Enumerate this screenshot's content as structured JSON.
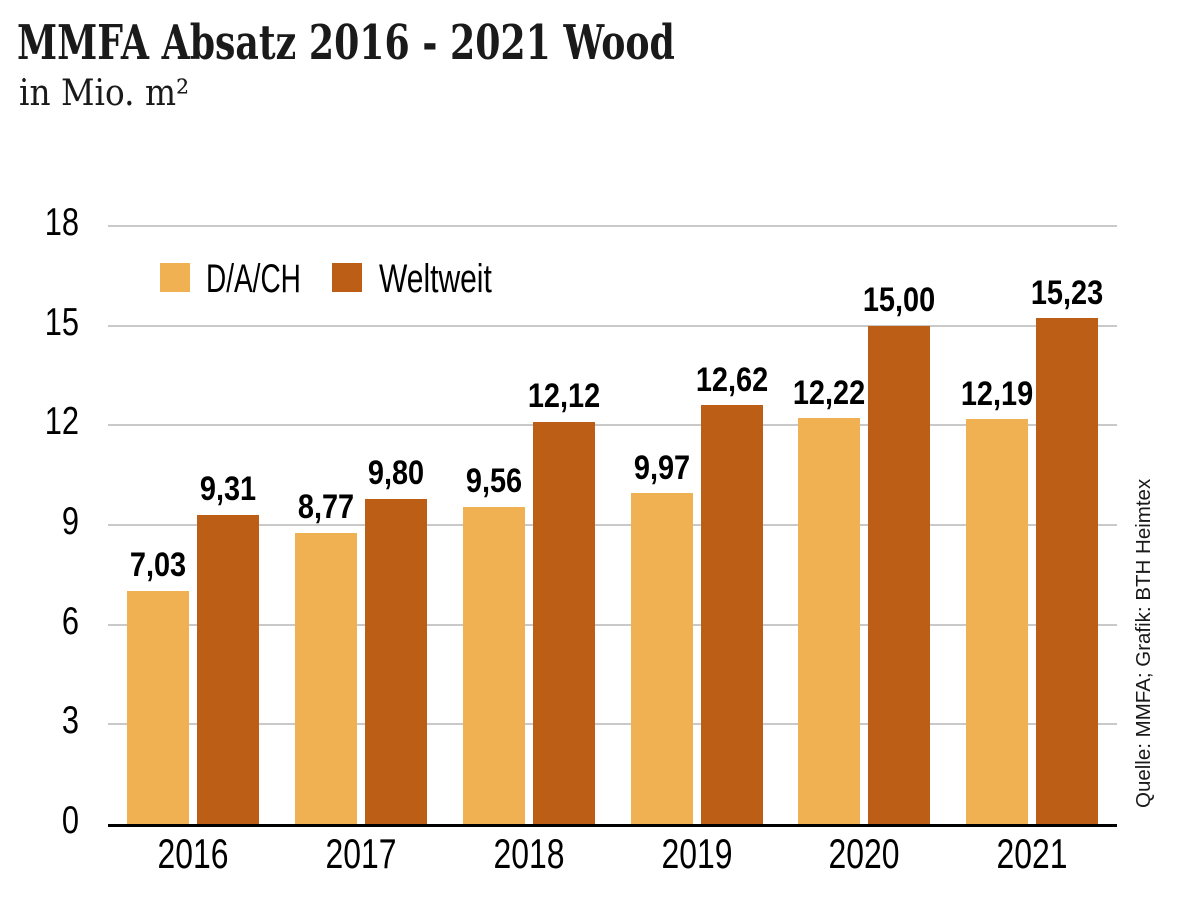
{
  "title": "MMFA Absatz 2016 - 2021 Wood",
  "subtitle": "in Mio. m²",
  "source_note": "Quelle: MMFA; Grafik: BTH Heimtex",
  "colors": {
    "dach": "#EFB152",
    "weltweit": "#BD5E17",
    "gridline": "#C9C9C9",
    "axis": "#000000",
    "text": "#000000"
  },
  "legend": {
    "items": [
      {
        "label": "D/A/CH",
        "color": "#EFB152"
      },
      {
        "label": "Weltweit",
        "color": "#BD5E17"
      }
    ]
  },
  "chart_data": {
    "type": "bar",
    "title": "MMFA Absatz 2016 - 2021 Wood",
    "subtitle": "in Mio. m²",
    "unit": "Mio. m²",
    "categories": [
      "2016",
      "2017",
      "2018",
      "2019",
      "2020",
      "2021"
    ],
    "series": [
      {
        "name": "D/A/CH",
        "color": "#EFB152",
        "values": [
          7.03,
          8.77,
          9.56,
          9.97,
          12.22,
          12.19
        ],
        "value_labels": [
          "7,03",
          "8,77",
          "9,56",
          "9,97",
          "12,22",
          "12,19"
        ]
      },
      {
        "name": "Weltweit",
        "color": "#BD5E17",
        "values": [
          9.31,
          9.8,
          12.12,
          12.62,
          15.0,
          15.23
        ],
        "value_labels": [
          "9,31",
          "9,80",
          "12,12",
          "12,62",
          "15,00",
          "15,23"
        ]
      }
    ],
    "xlabel": "",
    "ylabel": "",
    "ylim": [
      0,
      18
    ],
    "y_ticks": [
      0,
      3,
      6,
      9,
      12,
      15,
      18
    ],
    "grid": true,
    "legend_position": "top-left-inside",
    "source": "Quelle: MMFA; Grafik: BTH Heimtex"
  }
}
